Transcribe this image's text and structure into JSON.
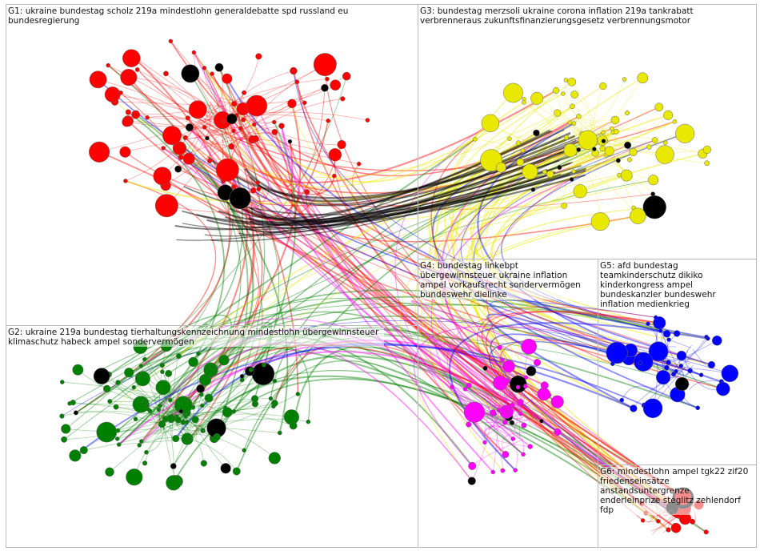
{
  "groups": [
    {
      "label": "G1: ukraine bundestag scholz 219a mindestlohn generaldebatte spd russland eu bundesregierung",
      "color": "#ff0000"
    },
    {
      "label": "G2: ukraine 219a bundestag tierhaltungskennzeichnung mindestlohn übergewinnsteuer klimaschutz habeck ampel sondervermögen",
      "color": "#008000"
    },
    {
      "label": "G3: bundestag merzsoli ukraine corona inflation 219a tankrabatt verbrenneraus zukunftsfinanzierungsgesetz verbrennungsmotor",
      "color": "#e8e800"
    },
    {
      "label": "G4: bundestag linkebpt übergewinnsteuer ukraine inflation ampel vorkaufsrecht sondervermögen bundeswehr dielinke",
      "color": "#ff00ff"
    },
    {
      "label": "G5: afd bundestag teamkinderschutz dikiko kinderkongress ampel bundeskanzler bundeswehr inflation medienkrieg",
      "color": "#0000ff"
    },
    {
      "label": "G6: mindestlohn ampel tgk22 zif20 friedenseinsätze anstandsuntergrenze enderleinprize steglitz zehlendorf fdp",
      "color": "#ff0000"
    }
  ]
}
